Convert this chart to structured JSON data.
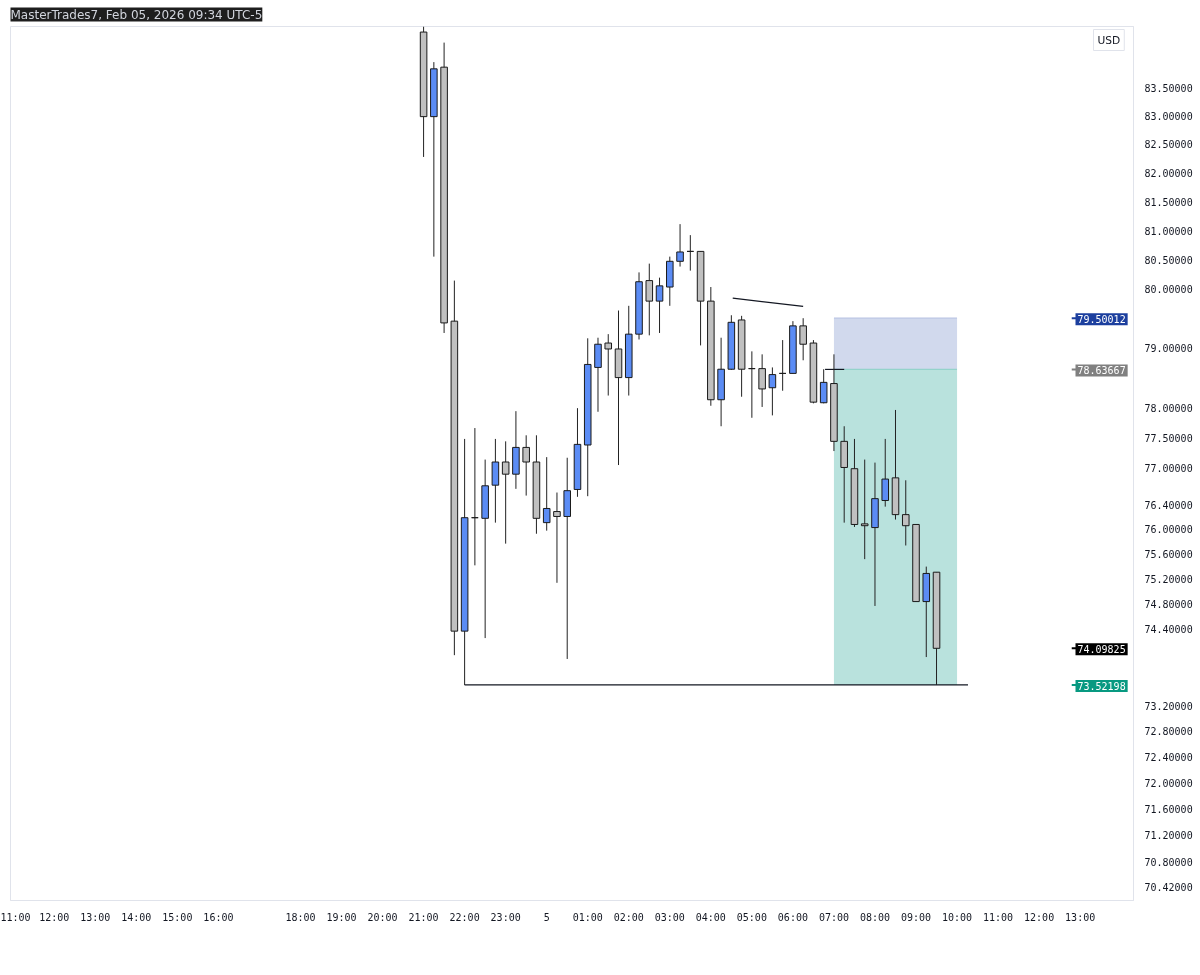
{
  "chart_data": {
    "type": "candlestick",
    "title": "MasterTrades7, Feb 05, 2026 09:34 UTC-5",
    "x": [
      "2026-02-04T21:00",
      "2026-02-04T21:15",
      "2026-02-04T21:30",
      "2026-02-04T21:45",
      "2026-02-04T22:00",
      "2026-02-04T22:15",
      "2026-02-04T22:30",
      "2026-02-04T22:45",
      "2026-02-04T23:00",
      "2026-02-04T23:15",
      "2026-02-04T23:30",
      "2026-02-04T23:45",
      "2026-02-05T00:00",
      "2026-02-05T00:15",
      "2026-02-05T00:30",
      "2026-02-05T00:45",
      "2026-02-05T01:00",
      "2026-02-05T01:15",
      "2026-02-05T01:30",
      "2026-02-05T01:45",
      "2026-02-05T02:00",
      "2026-02-05T02:15",
      "2026-02-05T02:30",
      "2026-02-05T02:45",
      "2026-02-05T03:00",
      "2026-02-05T03:15",
      "2026-02-05T03:30",
      "2026-02-05T03:45",
      "2026-02-05T04:00",
      "2026-02-05T04:15",
      "2026-02-05T04:30",
      "2026-02-05T04:45",
      "2026-02-05T05:00",
      "2026-02-05T05:15",
      "2026-02-05T05:30",
      "2026-02-05T05:45",
      "2026-02-05T06:00",
      "2026-02-05T06:15",
      "2026-02-05T06:30",
      "2026-02-05T06:45",
      "2026-02-05T07:00",
      "2026-02-05T07:15",
      "2026-02-05T07:30",
      "2026-02-05T07:45",
      "2026-02-05T08:00",
      "2026-02-05T08:15",
      "2026-02-05T08:30",
      "2026-02-05T08:45",
      "2026-02-05T09:00",
      "2026-02-05T09:15",
      "2026-02-05T09:30"
    ],
    "ohlc": [
      [
        84.5,
        84.6,
        82.28,
        82.99
      ],
      [
        82.99,
        83.96,
        80.55,
        83.84
      ],
      [
        83.87,
        84.31,
        79.25,
        79.42
      ],
      [
        79.45,
        80.14,
        73.99,
        74.37
      ],
      [
        74.37,
        77.48,
        73.52,
        76.19
      ],
      [
        76.19,
        77.66,
        75.42,
        76.19
      ],
      [
        76.18,
        77.14,
        74.26,
        76.71
      ],
      [
        76.72,
        77.48,
        76.11,
        77.1
      ],
      [
        77.1,
        77.44,
        75.77,
        76.9
      ],
      [
        76.9,
        77.94,
        76.66,
        77.34
      ],
      [
        77.34,
        77.54,
        76.55,
        77.1
      ],
      [
        77.1,
        77.54,
        75.93,
        76.18
      ],
      [
        76.11,
        77.18,
        75.98,
        76.34
      ],
      [
        76.29,
        76.6,
        75.14,
        76.21
      ],
      [
        76.21,
        77.17,
        73.93,
        76.63
      ],
      [
        76.65,
        77.99,
        76.53,
        77.39
      ],
      [
        77.38,
        79.16,
        76.54,
        78.72
      ],
      [
        78.67,
        79.17,
        77.93,
        79.06
      ],
      [
        79.08,
        79.23,
        78.2,
        78.98
      ],
      [
        78.98,
        79.63,
        77.05,
        78.5
      ],
      [
        78.5,
        79.71,
        78.2,
        79.23
      ],
      [
        79.23,
        80.28,
        79.14,
        80.12
      ],
      [
        80.14,
        80.43,
        79.21,
        79.79
      ],
      [
        79.79,
        80.19,
        79.25,
        80.05
      ],
      [
        80.03,
        80.55,
        79.71,
        80.47
      ],
      [
        80.47,
        81.11,
        80.38,
        80.63
      ],
      [
        80.64,
        80.92,
        80.31,
        80.64
      ],
      [
        80.64,
        80.64,
        79.04,
        79.79
      ],
      [
        79.79,
        80.03,
        78.03,
        78.13
      ],
      [
        78.13,
        79.17,
        77.69,
        78.64
      ],
      [
        78.64,
        79.55,
        78.63,
        79.43
      ],
      [
        79.47,
        79.54,
        78.18,
        78.64
      ],
      [
        78.65,
        78.94,
        77.83,
        78.65
      ],
      [
        78.65,
        78.89,
        78.01,
        78.31
      ],
      [
        78.33,
        78.67,
        77.87,
        78.55
      ],
      [
        78.57,
        79.13,
        78.28,
        78.57
      ],
      [
        78.57,
        79.45,
        78.57,
        79.37
      ],
      [
        79.37,
        79.5,
        78.79,
        79.06
      ],
      [
        79.08,
        79.13,
        78.07,
        78.09
      ],
      [
        78.08,
        78.64,
        78.07,
        78.42
      ],
      [
        78.4,
        78.89,
        77.28,
        77.44
      ],
      [
        77.44,
        77.69,
        76.11,
        77.01
      ],
      [
        76.99,
        77.48,
        76.04,
        76.08
      ],
      [
        76.09,
        77.14,
        75.52,
        76.06
      ],
      [
        76.03,
        77.09,
        74.77,
        76.5
      ],
      [
        76.47,
        77.48,
        76.37,
        76.82
      ],
      [
        76.84,
        77.96,
        76.16,
        76.24
      ],
      [
        76.24,
        76.8,
        75.74,
        76.06
      ],
      [
        76.08,
        76.08,
        74.84,
        74.84
      ],
      [
        74.84,
        75.4,
        73.96,
        75.29
      ],
      [
        75.31,
        75.31,
        73.52198,
        74.09825
      ]
    ],
    "colors": [
      "#c0c0c0",
      "#5b8cf5",
      "#c0c0c0",
      "#c0c0c0",
      "#5b8cf5",
      "#1a1a1a",
      "#5b8cf5",
      "#5b8cf5",
      "#c0c0c0",
      "#5b8cf5",
      "#c0c0c0",
      "#c0c0c0",
      "#5b8cf5",
      "#c0c0c0",
      "#5b8cf5",
      "#5b8cf5",
      "#5b8cf5",
      "#5b8cf5",
      "#c0c0c0",
      "#c0c0c0",
      "#5b8cf5",
      "#5b8cf5",
      "#c0c0c0",
      "#5b8cf5",
      "#5b8cf5",
      "#5b8cf5",
      "#1a1a1a",
      "#c0c0c0",
      "#c0c0c0",
      "#5b8cf5",
      "#5b8cf5",
      "#c0c0c0",
      "#1a1a1a",
      "#c0c0c0",
      "#5b8cf5",
      "#1a1a1a",
      "#5b8cf5",
      "#c0c0c0",
      "#c0c0c0",
      "#5b8cf5",
      "#c0c0c0",
      "#c0c0c0",
      "#c0c0c0",
      "#c0c0c0",
      "#5b8cf5",
      "#5b8cf5",
      "#c0c0c0",
      "#c0c0c0",
      "#c0c0c0",
      "#5b8cf5",
      "#c0c0c0"
    ],
    "series": [
      {
        "type": "line",
        "color": "#b9c4e3",
        "x": [
          "2026-02-05T07:00",
          "2026-02-05T10:00"
        ],
        "values": [
          79.50012,
          79.50012
        ],
        "lower": [
          78.63667,
          78.63667
        ],
        "upper": [
          79.50012,
          79.50012
        ]
      },
      {
        "type": "line",
        "color": "#94d3cb",
        "x": [
          "2026-02-05T07:00",
          "2026-02-05T10:00"
        ],
        "values": [
          78.63667,
          78.63667
        ],
        "lower": [
          73.52198,
          73.52198
        ],
        "upper": [
          78.63667,
          78.63667
        ]
      },
      {
        "type": "line",
        "color": "#131722",
        "x": [
          "2026-02-04T22:00",
          "2026-02-05T10:16"
        ],
        "values": [
          73.52198,
          73.52198
        ]
      },
      {
        "type": "line",
        "color": "#131722",
        "x": [
          "2026-02-05T04:32",
          "2026-02-05T06:15"
        ],
        "values": [
          79.84,
          79.7
        ]
      },
      {
        "type": "line",
        "color": "#131722",
        "x": [
          "2026-02-05T06:47",
          "2026-02-05T07:15"
        ],
        "values": [
          78.63667,
          78.63667
        ]
      }
    ],
    "ref_lines": [
      {
        "axis": "y",
        "value": 79.50012,
        "label": "79.50012",
        "color": "#1c3f9e"
      },
      {
        "axis": "y",
        "value": 78.63667,
        "label": "78.63667",
        "color": "#808080"
      },
      {
        "axis": "y",
        "value": 74.09825,
        "label": "74.09825",
        "color": "#000000"
      },
      {
        "axis": "y",
        "value": 73.52198,
        "label": "73.52198",
        "color": "#089981"
      }
    ],
    "annotations": [
      "USD"
    ],
    "log": true,
    "xlim": [
      "2026-02-04T10:56",
      "2026-02-05T14:18"
    ],
    "xticks": [
      {
        "value": "2026-02-04T11:00",
        "label": "11:00"
      },
      {
        "value": "2026-02-04T12:00",
        "label": "12:00"
      },
      {
        "value": "2026-02-04T13:00",
        "label": "13:00"
      },
      {
        "value": "2026-02-04T14:00",
        "label": "14:00"
      },
      {
        "value": "2026-02-04T15:00",
        "label": "15:00"
      },
      {
        "value": "2026-02-04T16:00",
        "label": "16:00"
      },
      {
        "value": "2026-02-04T18:00",
        "label": "18:00"
      },
      {
        "value": "2026-02-04T19:00",
        "label": "19:00"
      },
      {
        "value": "2026-02-04T20:00",
        "label": "20:00"
      },
      {
        "value": "2026-02-04T21:00",
        "label": "21:00"
      },
      {
        "value": "2026-02-04T22:00",
        "label": "22:00"
      },
      {
        "value": "2026-02-04T23:00",
        "label": "23:00"
      },
      {
        "value": "2026-02-05T00:00",
        "label": "5"
      },
      {
        "value": "2026-02-05T01:00",
        "label": "01:00"
      },
      {
        "value": "2026-02-05T02:00",
        "label": "02:00"
      },
      {
        "value": "2026-02-05T03:00",
        "label": "03:00"
      },
      {
        "value": "2026-02-05T04:00",
        "label": "04:00"
      },
      {
        "value": "2026-02-05T05:00",
        "label": "05:00"
      },
      {
        "value": "2026-02-05T06:00",
        "label": "06:00"
      },
      {
        "value": "2026-02-05T07:00",
        "label": "07:00"
      },
      {
        "value": "2026-02-05T08:00",
        "label": "08:00"
      },
      {
        "value": "2026-02-05T09:00",
        "label": "09:00"
      },
      {
        "value": "2026-02-05T10:00",
        "label": "10:00"
      },
      {
        "value": "2026-02-05T11:00",
        "label": "11:00"
      },
      {
        "value": "2026-02-05T12:00",
        "label": "12:00"
      },
      {
        "value": "2026-02-05T13:00",
        "label": "13:00"
      }
    ],
    "ylim": [
      70.22,
      84.6
    ],
    "yticks": [
      {
        "value": 83.5,
        "label": "83.50000"
      },
      {
        "value": 83.0,
        "label": "83.00000"
      },
      {
        "value": 82.5,
        "label": "82.50000"
      },
      {
        "value": 82.0,
        "label": "82.00000"
      },
      {
        "value": 81.5,
        "label": "81.50000"
      },
      {
        "value": 81.0,
        "label": "81.00000"
      },
      {
        "value": 80.5,
        "label": "80.50000"
      },
      {
        "value": 80.0,
        "label": "80.00000"
      },
      {
        "value": 79.0,
        "label": "79.00000"
      },
      {
        "value": 78.0,
        "label": "78.00000"
      },
      {
        "value": 77.5,
        "label": "77.50000"
      },
      {
        "value": 77.0,
        "label": "77.00000"
      },
      {
        "value": 76.4,
        "label": "76.40000"
      },
      {
        "value": 76.0,
        "label": "76.00000"
      },
      {
        "value": 75.6,
        "label": "75.60000"
      },
      {
        "value": 75.2,
        "label": "75.20000"
      },
      {
        "value": 74.8,
        "label": "74.80000"
      },
      {
        "value": 74.4,
        "label": "74.40000"
      },
      {
        "value": 73.2,
        "label": "73.20000"
      },
      {
        "value": 72.8,
        "label": "72.80000"
      },
      {
        "value": 72.4,
        "label": "72.40000"
      },
      {
        "value": 72.0,
        "label": "72.00000"
      },
      {
        "value": 71.6,
        "label": "71.60000"
      },
      {
        "value": 71.2,
        "label": "71.20000"
      },
      {
        "value": 70.8,
        "label": "70.80000"
      },
      {
        "value": 70.42,
        "label": "70.42000"
      }
    ]
  }
}
